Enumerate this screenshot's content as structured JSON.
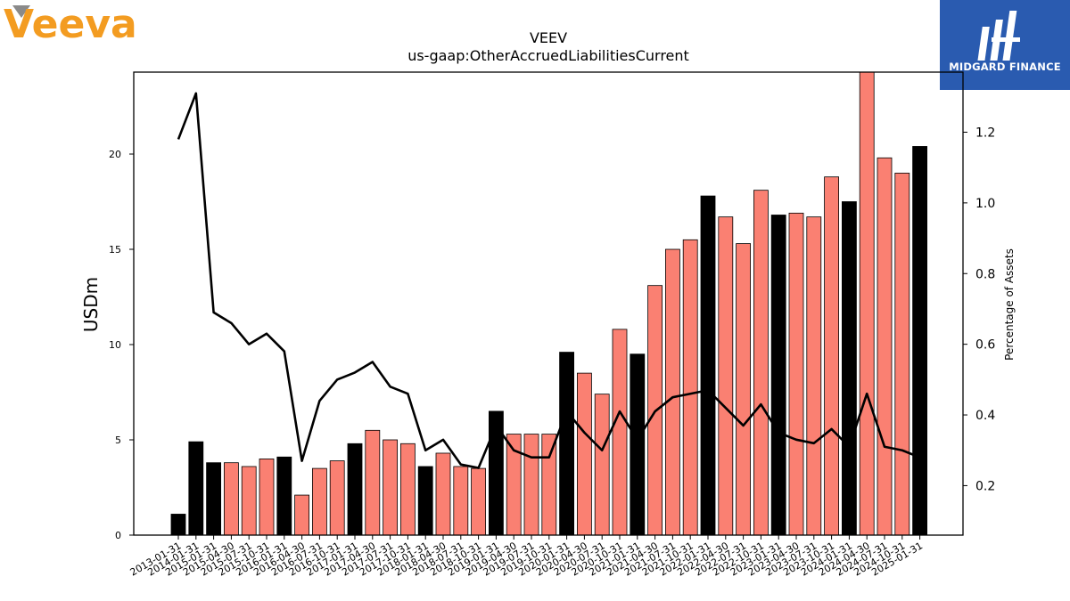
{
  "brand": {
    "left_logo_text": "Veeva",
    "right_logo_text": "MIDGARD FINANCE",
    "left_logo_color": "#f39c21",
    "right_logo_bg": "#2a5bb0"
  },
  "chart_data": {
    "type": "bar",
    "title": "VEEV",
    "subtitle": "us-gaap:OtherAccruedLiabilitiesCurrent",
    "ylabel": "USDm",
    "ylabel_right": "Percentage of Assets",
    "ylim": [
      0,
      24.3
    ],
    "ylim_right": [
      0.06,
      1.37
    ],
    "yticks": [
      0,
      5,
      10,
      15,
      20
    ],
    "yticks_right": [
      0.2,
      0.4,
      0.6,
      0.8,
      1.0,
      1.2
    ],
    "colors": {
      "annual": "#000000",
      "quarterly": "#fa8072",
      "line": "#000000"
    },
    "categories": [
      "2013-01-31",
      "2014-01-31",
      "2015-01-31",
      "2015-04-30",
      "2015-07-31",
      "2015-10-31",
      "2016-01-31",
      "2016-04-30",
      "2016-07-31",
      "2016-10-31",
      "2017-01-31",
      "2017-04-30",
      "2017-07-31",
      "2017-10-31",
      "2018-01-31",
      "2018-04-30",
      "2018-07-31",
      "2018-10-31",
      "2019-01-31",
      "2019-04-30",
      "2019-07-31",
      "2019-10-31",
      "2020-01-31",
      "2020-04-30",
      "2020-07-31",
      "2020-10-31",
      "2021-01-31",
      "2021-04-30",
      "2021-07-31",
      "2021-10-31",
      "2022-01-31",
      "2022-04-30",
      "2022-07-31",
      "2022-10-31",
      "2023-01-31",
      "2023-04-30",
      "2023-07-31",
      "2023-10-31",
      "2024-01-31",
      "2024-04-30",
      "2024-07-31",
      "2024-10-31",
      "2025-01-31"
    ],
    "values": [
      1.1,
      4.9,
      3.8,
      3.8,
      3.6,
      4.0,
      4.1,
      2.1,
      3.5,
      3.9,
      4.8,
      5.5,
      5.0,
      4.8,
      3.6,
      4.3,
      3.6,
      3.5,
      6.5,
      5.3,
      5.3,
      5.3,
      9.6,
      8.5,
      7.4,
      10.8,
      9.5,
      13.1,
      15.0,
      15.5,
      17.8,
      16.7,
      15.3,
      18.1,
      16.8,
      16.9,
      16.7,
      18.8,
      17.5,
      24.3,
      19.8,
      19.0,
      20.4
    ],
    "annual": [
      true,
      true,
      true,
      false,
      false,
      false,
      true,
      false,
      false,
      false,
      true,
      false,
      false,
      false,
      true,
      false,
      false,
      false,
      true,
      false,
      false,
      false,
      true,
      false,
      false,
      false,
      true,
      false,
      false,
      false,
      true,
      false,
      false,
      false,
      true,
      false,
      false,
      false,
      true,
      false,
      false,
      false,
      true
    ],
    "pct_assets": [
      1.18,
      1.31,
      0.69,
      0.66,
      0.6,
      0.63,
      0.58,
      0.27,
      0.44,
      0.5,
      0.52,
      0.55,
      0.48,
      0.46,
      0.3,
      0.33,
      0.26,
      0.25,
      0.37,
      0.3,
      0.28,
      0.28,
      0.41,
      0.35,
      0.3,
      0.41,
      0.33,
      0.41,
      0.45,
      0.46,
      0.47,
      0.42,
      0.37,
      0.43,
      0.35,
      0.33,
      0.32,
      0.36,
      0.31,
      0.46,
      0.31,
      0.3,
      0.28
    ]
  }
}
